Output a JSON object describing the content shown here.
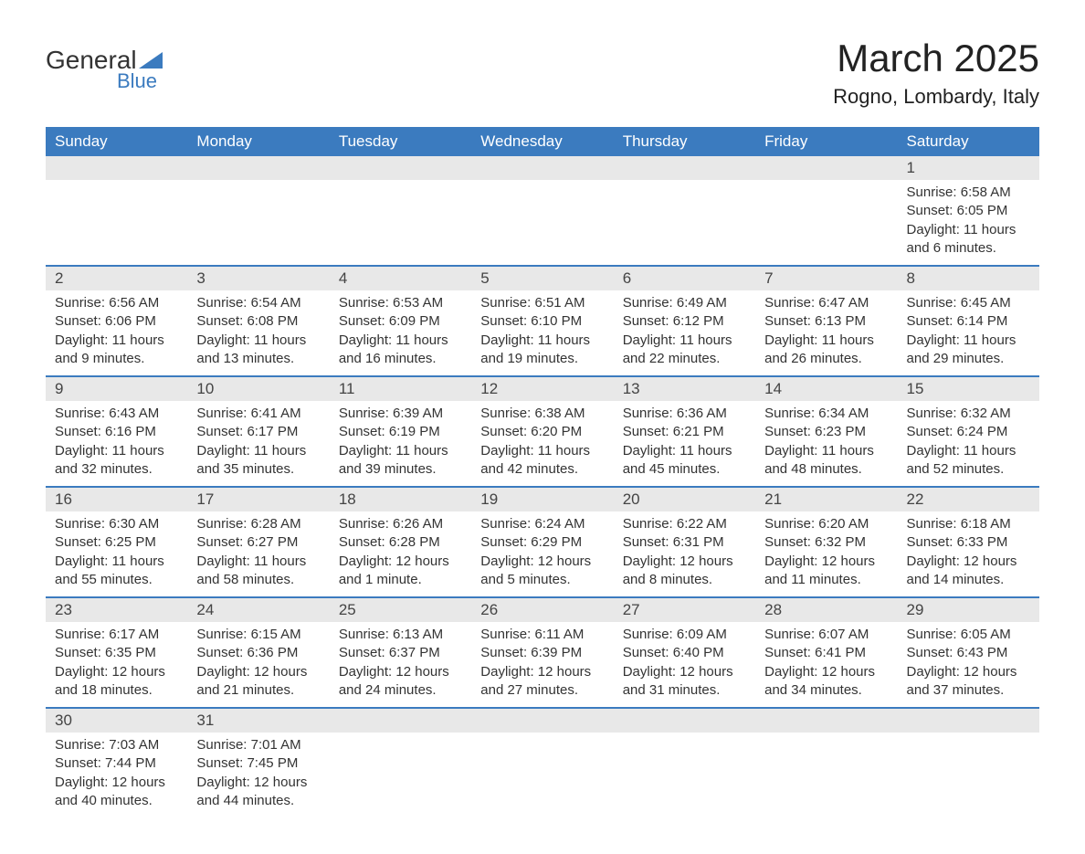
{
  "logo": {
    "text_general": "General",
    "text_blue": "Blue",
    "triangle_color": "#3b7bbf"
  },
  "header": {
    "month_title": "March 2025",
    "location": "Rogno, Lombardy, Italy"
  },
  "colors": {
    "header_bg": "#3b7bbf",
    "header_text": "#ffffff",
    "daynum_bg": "#e8e8e8",
    "border": "#3b7bbf",
    "text": "#333333"
  },
  "weekdays": [
    "Sunday",
    "Monday",
    "Tuesday",
    "Wednesday",
    "Thursday",
    "Friday",
    "Saturday"
  ],
  "weeks": [
    [
      null,
      null,
      null,
      null,
      null,
      null,
      {
        "day": "1",
        "sunrise": "Sunrise: 6:58 AM",
        "sunset": "Sunset: 6:05 PM",
        "daylight": "Daylight: 11 hours and 6 minutes."
      }
    ],
    [
      {
        "day": "2",
        "sunrise": "Sunrise: 6:56 AM",
        "sunset": "Sunset: 6:06 PM",
        "daylight": "Daylight: 11 hours and 9 minutes."
      },
      {
        "day": "3",
        "sunrise": "Sunrise: 6:54 AM",
        "sunset": "Sunset: 6:08 PM",
        "daylight": "Daylight: 11 hours and 13 minutes."
      },
      {
        "day": "4",
        "sunrise": "Sunrise: 6:53 AM",
        "sunset": "Sunset: 6:09 PM",
        "daylight": "Daylight: 11 hours and 16 minutes."
      },
      {
        "day": "5",
        "sunrise": "Sunrise: 6:51 AM",
        "sunset": "Sunset: 6:10 PM",
        "daylight": "Daylight: 11 hours and 19 minutes."
      },
      {
        "day": "6",
        "sunrise": "Sunrise: 6:49 AM",
        "sunset": "Sunset: 6:12 PM",
        "daylight": "Daylight: 11 hours and 22 minutes."
      },
      {
        "day": "7",
        "sunrise": "Sunrise: 6:47 AM",
        "sunset": "Sunset: 6:13 PM",
        "daylight": "Daylight: 11 hours and 26 minutes."
      },
      {
        "day": "8",
        "sunrise": "Sunrise: 6:45 AM",
        "sunset": "Sunset: 6:14 PM",
        "daylight": "Daylight: 11 hours and 29 minutes."
      }
    ],
    [
      {
        "day": "9",
        "sunrise": "Sunrise: 6:43 AM",
        "sunset": "Sunset: 6:16 PM",
        "daylight": "Daylight: 11 hours and 32 minutes."
      },
      {
        "day": "10",
        "sunrise": "Sunrise: 6:41 AM",
        "sunset": "Sunset: 6:17 PM",
        "daylight": "Daylight: 11 hours and 35 minutes."
      },
      {
        "day": "11",
        "sunrise": "Sunrise: 6:39 AM",
        "sunset": "Sunset: 6:19 PM",
        "daylight": "Daylight: 11 hours and 39 minutes."
      },
      {
        "day": "12",
        "sunrise": "Sunrise: 6:38 AM",
        "sunset": "Sunset: 6:20 PM",
        "daylight": "Daylight: 11 hours and 42 minutes."
      },
      {
        "day": "13",
        "sunrise": "Sunrise: 6:36 AM",
        "sunset": "Sunset: 6:21 PM",
        "daylight": "Daylight: 11 hours and 45 minutes."
      },
      {
        "day": "14",
        "sunrise": "Sunrise: 6:34 AM",
        "sunset": "Sunset: 6:23 PM",
        "daylight": "Daylight: 11 hours and 48 minutes."
      },
      {
        "day": "15",
        "sunrise": "Sunrise: 6:32 AM",
        "sunset": "Sunset: 6:24 PM",
        "daylight": "Daylight: 11 hours and 52 minutes."
      }
    ],
    [
      {
        "day": "16",
        "sunrise": "Sunrise: 6:30 AM",
        "sunset": "Sunset: 6:25 PM",
        "daylight": "Daylight: 11 hours and 55 minutes."
      },
      {
        "day": "17",
        "sunrise": "Sunrise: 6:28 AM",
        "sunset": "Sunset: 6:27 PM",
        "daylight": "Daylight: 11 hours and 58 minutes."
      },
      {
        "day": "18",
        "sunrise": "Sunrise: 6:26 AM",
        "sunset": "Sunset: 6:28 PM",
        "daylight": "Daylight: 12 hours and 1 minute."
      },
      {
        "day": "19",
        "sunrise": "Sunrise: 6:24 AM",
        "sunset": "Sunset: 6:29 PM",
        "daylight": "Daylight: 12 hours and 5 minutes."
      },
      {
        "day": "20",
        "sunrise": "Sunrise: 6:22 AM",
        "sunset": "Sunset: 6:31 PM",
        "daylight": "Daylight: 12 hours and 8 minutes."
      },
      {
        "day": "21",
        "sunrise": "Sunrise: 6:20 AM",
        "sunset": "Sunset: 6:32 PM",
        "daylight": "Daylight: 12 hours and 11 minutes."
      },
      {
        "day": "22",
        "sunrise": "Sunrise: 6:18 AM",
        "sunset": "Sunset: 6:33 PM",
        "daylight": "Daylight: 12 hours and 14 minutes."
      }
    ],
    [
      {
        "day": "23",
        "sunrise": "Sunrise: 6:17 AM",
        "sunset": "Sunset: 6:35 PM",
        "daylight": "Daylight: 12 hours and 18 minutes."
      },
      {
        "day": "24",
        "sunrise": "Sunrise: 6:15 AM",
        "sunset": "Sunset: 6:36 PM",
        "daylight": "Daylight: 12 hours and 21 minutes."
      },
      {
        "day": "25",
        "sunrise": "Sunrise: 6:13 AM",
        "sunset": "Sunset: 6:37 PM",
        "daylight": "Daylight: 12 hours and 24 minutes."
      },
      {
        "day": "26",
        "sunrise": "Sunrise: 6:11 AM",
        "sunset": "Sunset: 6:39 PM",
        "daylight": "Daylight: 12 hours and 27 minutes."
      },
      {
        "day": "27",
        "sunrise": "Sunrise: 6:09 AM",
        "sunset": "Sunset: 6:40 PM",
        "daylight": "Daylight: 12 hours and 31 minutes."
      },
      {
        "day": "28",
        "sunrise": "Sunrise: 6:07 AM",
        "sunset": "Sunset: 6:41 PM",
        "daylight": "Daylight: 12 hours and 34 minutes."
      },
      {
        "day": "29",
        "sunrise": "Sunrise: 6:05 AM",
        "sunset": "Sunset: 6:43 PM",
        "daylight": "Daylight: 12 hours and 37 minutes."
      }
    ],
    [
      {
        "day": "30",
        "sunrise": "Sunrise: 7:03 AM",
        "sunset": "Sunset: 7:44 PM",
        "daylight": "Daylight: 12 hours and 40 minutes."
      },
      {
        "day": "31",
        "sunrise": "Sunrise: 7:01 AM",
        "sunset": "Sunset: 7:45 PM",
        "daylight": "Daylight: 12 hours and 44 minutes."
      },
      null,
      null,
      null,
      null,
      null
    ]
  ]
}
